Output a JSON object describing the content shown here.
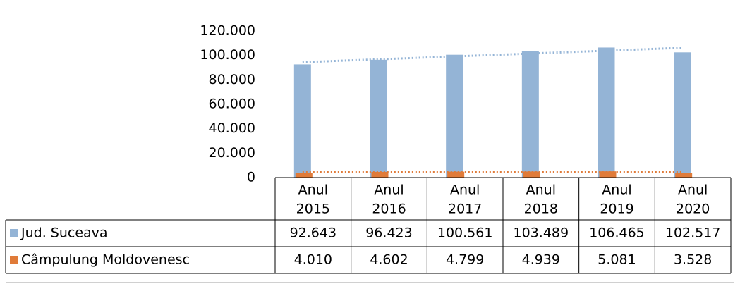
{
  "chart_data": {
    "type": "bar",
    "categories": [
      [
        "Anul",
        "2015"
      ],
      [
        "Anul",
        "2016"
      ],
      [
        "Anul",
        "2017"
      ],
      [
        "Anul",
        "2018"
      ],
      [
        "Anul",
        "2019"
      ],
      [
        "Anul",
        "2020"
      ]
    ],
    "series": [
      {
        "name": "Jud. Suceava",
        "color": "#94b4d6",
        "values": [
          92643,
          96423,
          100561,
          103489,
          106465,
          102517
        ],
        "value_labels": [
          "92.643",
          "96.423",
          "100.561",
          "103.489",
          "106.465",
          "102.517"
        ],
        "trendline_color": "#94b4d6"
      },
      {
        "name": "Câmpulung Moldovenesc",
        "color": "#e07b39",
        "values": [
          4010,
          4602,
          4799,
          4939,
          5081,
          3528
        ],
        "value_labels": [
          "4.010",
          "4.602",
          "4.799",
          "4.939",
          "5.081",
          "3.528"
        ],
        "trendline_color": "#e07b39"
      }
    ],
    "ylim": [
      0,
      120000
    ],
    "yticks": [
      0,
      {
        "value": 20000,
        "label": "20.000"
      },
      {
        "value": 40000,
        "label": "40.000"
      },
      {
        "value": 60000,
        "label": "60.000"
      },
      {
        "value": 80000,
        "label": "80.000"
      },
      {
        "value": 100000,
        "label": "100.000"
      },
      {
        "value": 120000,
        "label": "120.000"
      }
    ],
    "trendline": "linear",
    "data_table": true
  }
}
